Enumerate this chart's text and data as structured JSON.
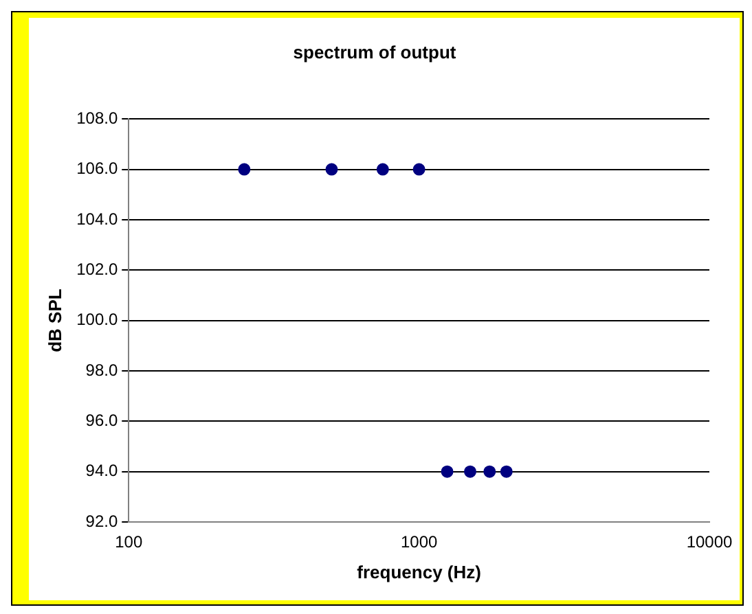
{
  "chart_data": {
    "type": "scatter",
    "title": "spectrum of output",
    "xlabel": "frequency (Hz)",
    "ylabel": "dB SPL",
    "x": [
      250,
      500,
      750,
      1000,
      1250,
      1500,
      1750,
      2000
    ],
    "values": [
      106,
      106,
      106,
      106,
      94,
      94,
      94,
      94
    ],
    "color": "#000080",
    "marker": "circle",
    "log": "x",
    "grid": "y",
    "legend": false,
    "xlim": [
      100,
      10000
    ],
    "xticks": [
      100,
      1000,
      10000
    ],
    "ylim": [
      92,
      108
    ],
    "yticks": [
      {
        "value": 92,
        "label": "92.0"
      },
      {
        "value": 94,
        "label": "94.0"
      },
      {
        "value": 96,
        "label": "96.0"
      },
      {
        "value": 98,
        "label": "98.0"
      },
      {
        "value": 100,
        "label": "100.0"
      },
      {
        "value": 102,
        "label": "102.0"
      },
      {
        "value": 104,
        "label": "104.0"
      },
      {
        "value": 106,
        "label": "106.0"
      },
      {
        "value": 108,
        "label": "108.0"
      }
    ]
  }
}
